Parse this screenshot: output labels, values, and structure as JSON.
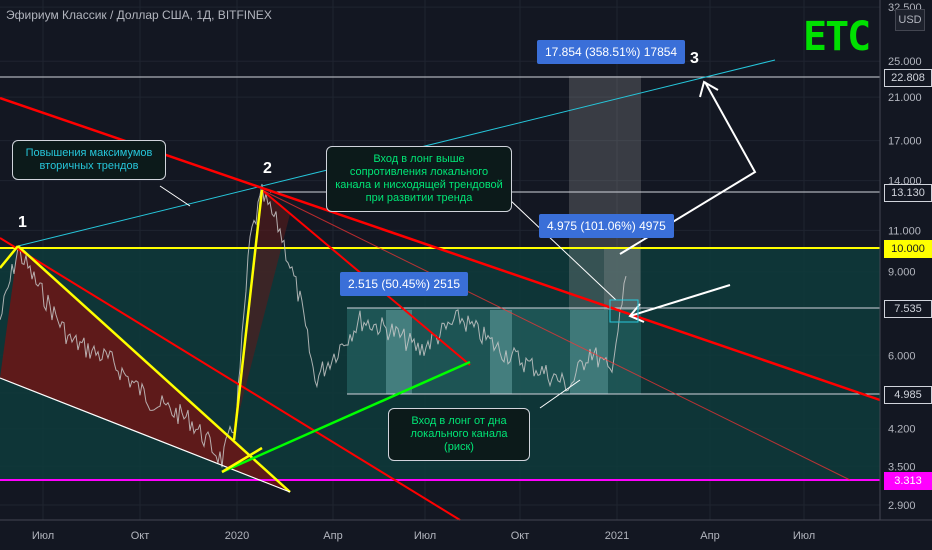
{
  "header": {
    "title": "Эфириум Классик / Доллар США, 1Д, BITFINEX",
    "logo_text": "ETC",
    "currency": "USD"
  },
  "chart_data": {
    "type": "line",
    "scale": "log",
    "ylim": [
      2.75,
      33
    ],
    "x_ticks": [
      "Июл",
      "Окт",
      "2020",
      "Апр",
      "Июл",
      "Окт",
      "2021",
      "Апр",
      "Июл"
    ],
    "y_ticks": [
      "2.900",
      "3.500",
      "4.200",
      "5.000",
      "6.000",
      "9.000",
      "11.000",
      "14.000",
      "17.000",
      "21.000",
      "25.000",
      "32.500"
    ],
    "price_tags": [
      {
        "value": "22.808",
        "style": "normal"
      },
      {
        "value": "13.130",
        "style": "normal"
      },
      {
        "value": "10.000",
        "style": "yellow"
      },
      {
        "value": "7.535",
        "style": "normal"
      },
      {
        "value": "4.985",
        "style": "normal"
      },
      {
        "value": "3.313",
        "style": "magenta"
      }
    ],
    "measures": [
      {
        "label": "17.854 (358.51%) 17854"
      },
      {
        "label": "4.975 (101.06%) 4975"
      },
      {
        "label": "2.515 (50.45%) 2515"
      }
    ],
    "wave_labels": [
      "1",
      "2",
      "3"
    ],
    "annotations": [
      {
        "text": "Повышения максимумов вторичных трендов"
      },
      {
        "text": "Вход в лонг выше сопротивления локального канала и нисходящей трендовой при развитии тренда"
      },
      {
        "text": "Вход в лонг от дна локального канала (риск)"
      }
    ],
    "colors": {
      "background": "#131722",
      "resistance": "#ff0000",
      "support_line": "#ffff00",
      "channel_bottom": "#00ff00",
      "uptrend_line": "#26c6da",
      "magenta_level": "#ff00ff",
      "zone_fill": "#0e3b3b",
      "triangle_fill": "#7a1212"
    }
  }
}
